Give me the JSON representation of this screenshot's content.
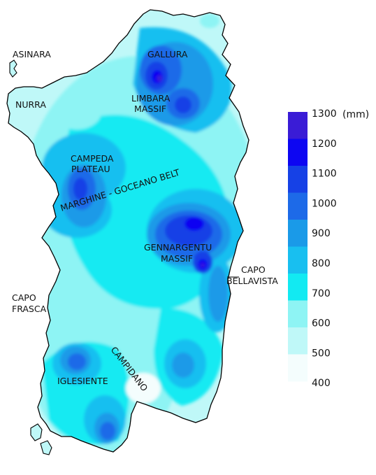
{
  "map": {
    "legend": {
      "unit": "(mm)",
      "classes": [
        {
          "value": "1300",
          "color": "#3a1cd6"
        },
        {
          "value": "1200",
          "color": "#0d06f2"
        },
        {
          "value": "1100",
          "color": "#1641e6"
        },
        {
          "value": "1000",
          "color": "#1d6ae8"
        },
        {
          "value": "900",
          "color": "#1a9ae8"
        },
        {
          "value": "800",
          "color": "#18bff0"
        },
        {
          "value": "700",
          "color": "#12eaf2"
        },
        {
          "value": "600",
          "color": "#8ef4f4"
        },
        {
          "value": "500",
          "color": "#bff8f8"
        },
        {
          "value": "400",
          "color": "#f4fdfd"
        }
      ]
    },
    "places": {
      "asinara": "ASINARA",
      "nurra": "NURRA",
      "gallura": "GALLURA",
      "limbara_1": "LIMBARA",
      "limbara_2": "MASSIF",
      "campeda_1": "CAMPEDA",
      "campeda_2": "PLATEAU",
      "marghine": "MARGHINE - GOCEANO BELT",
      "gennargentu_1": "GENNARGENTU",
      "gennargentu_2": "MASSIF",
      "capo_bellavista_1": "CAPO",
      "capo_bellavista_2": "BELLAVISTA",
      "capo_frasca_1": "CAPO",
      "capo_frasca_2": "FRASCA",
      "campidano": "CAMPIDANO",
      "iglesiente": "IGLESIENTE"
    }
  }
}
